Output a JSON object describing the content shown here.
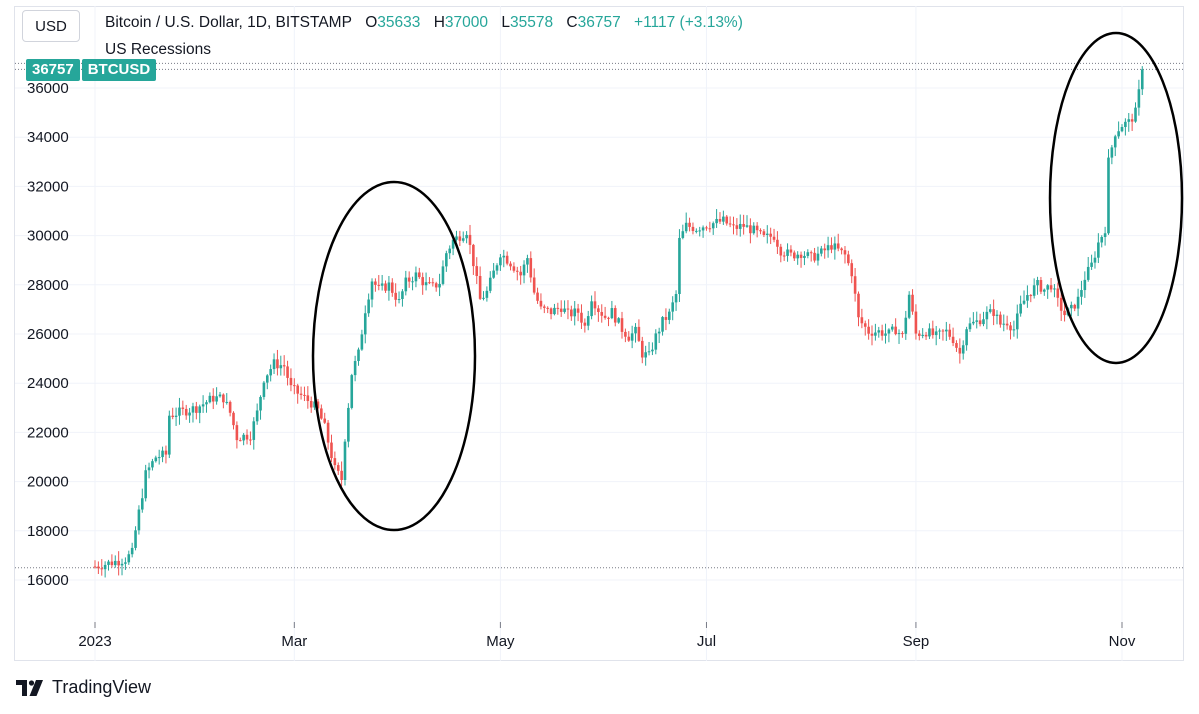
{
  "header": {
    "currency": "USD",
    "title": "Bitcoin / U.S. Dollar, 1D, BITSTAMP",
    "open_label": "O",
    "open": "35633",
    "high_label": "H",
    "high": "37000",
    "low_label": "L",
    "low": "35578",
    "close_label": "C",
    "close": "36757",
    "change": "+1117 (+3.13%)",
    "indicator": "US Recessions"
  },
  "price_tag": {
    "price": "36757",
    "symbol": "BTCUSD"
  },
  "colors": {
    "up": "#26a69a",
    "down": "#ef5350",
    "accent": "#26a69a",
    "grid": "#f0f3fa"
  },
  "brand": {
    "name": "TradingView",
    "icon": "tradingview-logo-icon"
  },
  "chart_data": {
    "type": "candlestick",
    "title": "Bitcoin / U.S. Dollar, 1D, BITSTAMP",
    "y_ticks": [
      16000,
      18000,
      20000,
      22000,
      24000,
      26000,
      28000,
      30000,
      32000,
      34000,
      36000
    ],
    "ylim": [
      14000,
      36900
    ],
    "x_ticks": [
      {
        "label": "2023",
        "day": 0
      },
      {
        "label": "Mar",
        "day": 59
      },
      {
        "label": "May",
        "day": 120
      },
      {
        "label": "Jul",
        "day": 181
      },
      {
        "label": "Sep",
        "day": 243
      },
      {
        "label": "Nov",
        "day": 304
      }
    ],
    "x_range_days": [
      0,
      309
    ],
    "last_price": 36757,
    "dotted_levels": [
      36757,
      37000,
      16500
    ],
    "path_points": [
      [
        0,
        16550
      ],
      [
        9,
        16850
      ],
      [
        11,
        17100
      ],
      [
        12,
        18000
      ],
      [
        14,
        19500
      ],
      [
        15,
        20300
      ],
      [
        18,
        21000
      ],
      [
        21,
        21100
      ],
      [
        22,
        22700
      ],
      [
        30,
        23000
      ],
      [
        35,
        23400
      ],
      [
        38,
        23400
      ],
      [
        40,
        22800
      ],
      [
        42,
        21800
      ],
      [
        46,
        21900
      ],
      [
        48,
        22800
      ],
      [
        50,
        24200
      ],
      [
        53,
        24800
      ],
      [
        56,
        24700
      ],
      [
        58,
        23800
      ],
      [
        61,
        23500
      ],
      [
        64,
        23200
      ],
      [
        66,
        22900
      ],
      [
        68,
        22200
      ],
      [
        71,
        20500
      ],
      [
        73,
        20100
      ],
      [
        74,
        21800
      ],
      [
        76,
        24400
      ],
      [
        78,
        25200
      ],
      [
        80,
        27000
      ],
      [
        82,
        28200
      ],
      [
        84,
        27800
      ],
      [
        87,
        28000
      ],
      [
        90,
        27300
      ],
      [
        92,
        28100
      ],
      [
        95,
        28400
      ],
      [
        98,
        28000
      ],
      [
        100,
        27900
      ],
      [
        102,
        28100
      ],
      [
        104,
        29300
      ],
      [
        106,
        29800
      ],
      [
        108,
        30000
      ],
      [
        110,
        30200
      ],
      [
        112,
        28900
      ],
      [
        114,
        27400
      ],
      [
        116,
        27700
      ],
      [
        118,
        28500
      ],
      [
        120,
        29300
      ],
      [
        123,
        28900
      ],
      [
        126,
        28400
      ],
      [
        128,
        29100
      ],
      [
        130,
        27700
      ],
      [
        132,
        27000
      ],
      [
        135,
        26900
      ],
      [
        138,
        27100
      ],
      [
        140,
        26800
      ],
      [
        143,
        26900
      ],
      [
        145,
        26300
      ],
      [
        147,
        27500
      ],
      [
        149,
        27000
      ],
      [
        151,
        26700
      ],
      [
        153,
        26900
      ],
      [
        156,
        26200
      ],
      [
        158,
        25900
      ],
      [
        160,
        26100
      ],
      [
        162,
        25200
      ],
      [
        164,
        25100
      ],
      [
        166,
        25900
      ],
      [
        168,
        26500
      ],
      [
        170,
        26800
      ],
      [
        172,
        27600
      ],
      [
        173,
        29800
      ],
      [
        175,
        30400
      ],
      [
        178,
        30300
      ],
      [
        180,
        30400
      ],
      [
        183,
        30500
      ],
      [
        186,
        30600
      ],
      [
        189,
        30300
      ],
      [
        192,
        30400
      ],
      [
        195,
        30200
      ],
      [
        198,
        29900
      ],
      [
        201,
        30000
      ],
      [
        203,
        29400
      ],
      [
        206,
        29200
      ],
      [
        209,
        29300
      ],
      [
        212,
        29100
      ],
      [
        215,
        29300
      ],
      [
        218,
        29600
      ],
      [
        220,
        29400
      ],
      [
        222,
        29200
      ],
      [
        224,
        28500
      ],
      [
        226,
        26600
      ],
      [
        229,
        26100
      ],
      [
        232,
        26100
      ],
      [
        235,
        26000
      ],
      [
        237,
        26200
      ],
      [
        239,
        25900
      ],
      [
        241,
        27600
      ],
      [
        243,
        26000
      ],
      [
        246,
        26100
      ],
      [
        249,
        25900
      ],
      [
        252,
        26100
      ],
      [
        254,
        25800
      ],
      [
        256,
        25200
      ],
      [
        258,
        26300
      ],
      [
        261,
        26500
      ],
      [
        264,
        26800
      ],
      [
        266,
        26900
      ],
      [
        268,
        26400
      ],
      [
        270,
        26500
      ],
      [
        272,
        26200
      ],
      [
        274,
        27100
      ],
      [
        276,
        27600
      ],
      [
        279,
        28000
      ],
      [
        281,
        27800
      ],
      [
        283,
        28000
      ],
      [
        285,
        27300
      ],
      [
        287,
        26800
      ],
      [
        289,
        27000
      ],
      [
        291,
        27400
      ],
      [
        293,
        28300
      ],
      [
        295,
        28800
      ],
      [
        297,
        29700
      ],
      [
        299,
        30300
      ],
      [
        300,
        33000
      ],
      [
        302,
        34200
      ],
      [
        304,
        34500
      ],
      [
        306,
        34600
      ],
      [
        308,
        35000
      ],
      [
        309,
        35800
      ],
      [
        310,
        36757
      ]
    ]
  },
  "annotations": [
    {
      "name": "march-rally-ellipse",
      "type": "ellipse"
    },
    {
      "name": "october-rally-ellipse",
      "type": "ellipse"
    }
  ]
}
